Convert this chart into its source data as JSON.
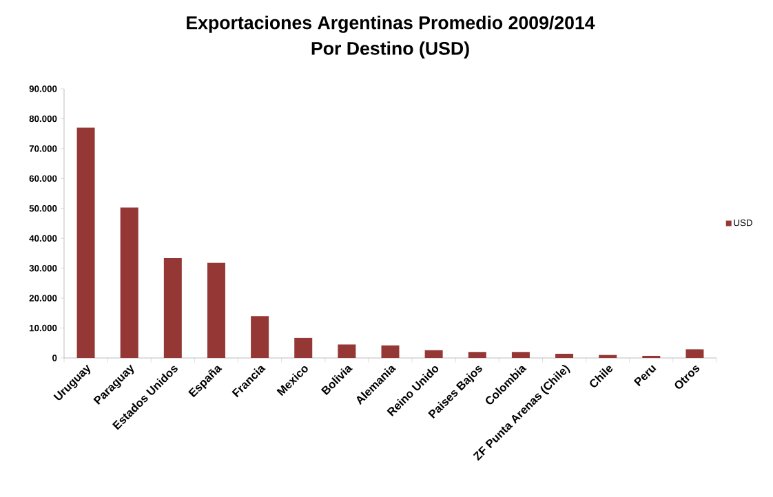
{
  "chart_data": {
    "type": "bar",
    "title": "Exportaciones Argentinas Promedio 2009/2014",
    "subtitle": "Por Destino (USD)",
    "categories": [
      "Uruguay",
      "Paraguay",
      "Estados Unidos",
      "España",
      "Francia",
      "Mexico",
      "Bolivia",
      "Alemania",
      "Reino Unido",
      "Paises Bajos",
      "Colombia",
      "ZF Punta Arenas (Chile)",
      "Chile",
      "Peru",
      "Otros"
    ],
    "series": [
      {
        "name": "USD",
        "color": "#953735",
        "values": [
          77000,
          50300,
          33400,
          31800,
          14000,
          6700,
          4500,
          4200,
          2600,
          2000,
          2000,
          1400,
          1000,
          700,
          2900
        ]
      }
    ],
    "ylim": [
      0,
      90000
    ],
    "yticks": [
      0,
      {
        "value": 10000,
        "label": "10.000"
      },
      {
        "value": 20000,
        "label": "20.000"
      },
      {
        "value": 30000,
        "label": "30.000"
      },
      {
        "value": 40000,
        "label": "40.000"
      },
      {
        "value": 50000,
        "label": "50.000"
      },
      {
        "value": 60000,
        "label": "60.000"
      },
      {
        "value": 70000,
        "label": "70.000"
      },
      {
        "value": 80000,
        "label": "80.000"
      },
      {
        "value": 90000,
        "label": "90.000"
      }
    ],
    "grid": false,
    "legend": "right"
  }
}
